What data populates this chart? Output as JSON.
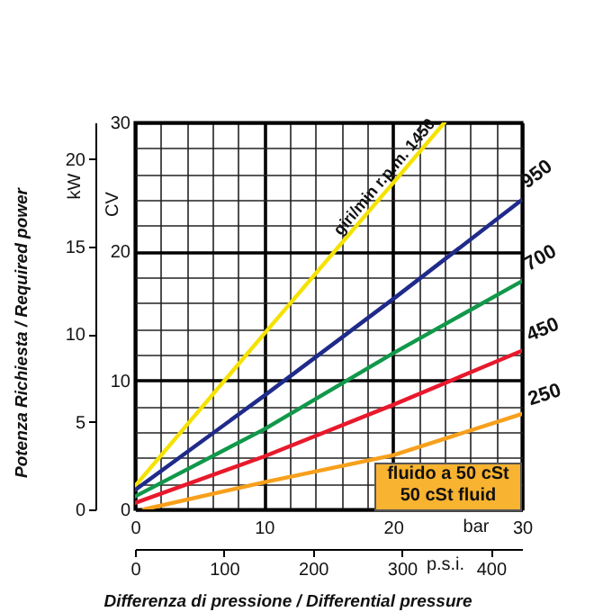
{
  "chart_data": {
    "type": "line",
    "xlabel": "bar",
    "ylabel": "CV",
    "y2label": "kW",
    "x2label": "p.s.i.",
    "annotations": [
      "Potenza Richiesta / Required power",
      "Differenza di pressione / Differential pressure",
      "fluido a 50 cSt",
      "50 cSt fluid"
    ],
    "xlim": [
      0,
      30
    ],
    "xticks": [
      0,
      10,
      20,
      30
    ],
    "ylim": [
      0,
      30
    ],
    "yticks": [
      0,
      10,
      20,
      30
    ],
    "y2lim": [
      0,
      22.1
    ],
    "y2ticks": [
      0,
      5,
      10,
      15,
      20
    ],
    "x2lim": [
      0,
      435
    ],
    "x2ticks": [
      0,
      100,
      200,
      300,
      400
    ],
    "grid": true,
    "line_style": "solid",
    "series": [
      {
        "name": "giri/min r.p.m. 1450",
        "color": "#f5e200",
        "x": [
          0,
          10,
          20,
          24
        ],
        "values": [
          1.8,
          13.6,
          25.3,
          30
        ]
      },
      {
        "name": "950",
        "color": "#1f2a8a",
        "x": [
          0,
          10,
          20,
          30
        ],
        "values": [
          1.5,
          8.8,
          16.3,
          24
        ]
      },
      {
        "name": "700",
        "color": "#11984a",
        "x": [
          0,
          10,
          20,
          30
        ],
        "values": [
          1,
          6.2,
          12.1,
          17.7
        ]
      },
      {
        "name": "450",
        "color": "#e8192c",
        "x": [
          0,
          10,
          20,
          30
        ],
        "values": [
          0.5,
          4.1,
          8.1,
          12.3
        ]
      },
      {
        "name": "250",
        "color": "#f7a01c",
        "x": [
          0.7,
          10,
          20,
          30
        ],
        "values": [
          0,
          2.1,
          4.2,
          7.4
        ]
      }
    ]
  }
}
